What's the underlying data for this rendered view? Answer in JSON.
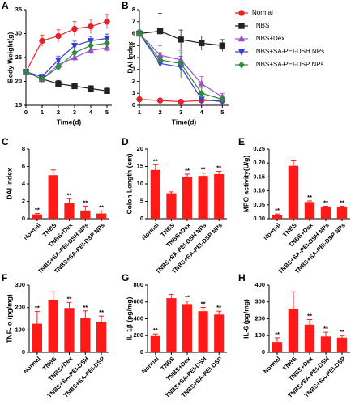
{
  "chart_data": [
    {
      "type": "line",
      "label": "A",
      "ylabel": "Body Weight(g)",
      "xlabel": "Time(d)",
      "x": [
        0,
        1,
        2,
        3,
        4,
        5
      ],
      "xlim": [
        0,
        5.3
      ],
      "xticks": [
        0,
        1,
        2,
        3,
        4,
        5
      ],
      "ylim": [
        15,
        35
      ],
      "yticks": [
        15,
        20,
        25,
        30,
        35
      ],
      "series": [
        {
          "name": "Normal",
          "color": "#e8212a",
          "marker": "circle",
          "values": [
            22,
            28.5,
            29.5,
            31,
            31.5,
            32.5
          ],
          "errors": [
            0.5,
            1.2,
            1.3,
            1.5,
            1.5,
            1.5
          ]
        },
        {
          "name": "TNBS",
          "color": "#222222",
          "marker": "square",
          "values": [
            22,
            20.5,
            19.5,
            19,
            18.5,
            18
          ],
          "errors": [
            0.5,
            0.5,
            0.7,
            0.6,
            0.6,
            0.6
          ]
        },
        {
          "name": "TNBS+Dex",
          "color": "#9b4fc9",
          "marker": "triangle",
          "values": [
            22,
            20.5,
            23.5,
            25,
            26.5,
            27
          ],
          "errors": [
            0.5,
            0.5,
            0.7,
            0.8,
            0.8,
            0.8
          ]
        },
        {
          "name": "TNBS+SA-PEI-DSH NPs",
          "color": "#3a3ad6",
          "marker": "triangle-down",
          "values": [
            22,
            21,
            24.5,
            27.5,
            28.5,
            29
          ],
          "errors": [
            0.5,
            0.5,
            0.8,
            0.9,
            0.9,
            0.9
          ]
        },
        {
          "name": "TNBS+SA-PEI-DSP NPs",
          "color": "#2e8b3e",
          "marker": "diamond",
          "values": [
            22,
            20.5,
            23,
            26,
            27.5,
            28
          ],
          "errors": [
            0.5,
            0.5,
            0.7,
            0.8,
            0.8,
            0.8
          ]
        }
      ]
    },
    {
      "type": "line",
      "label": "B",
      "ylabel": "DAI Index",
      "xlabel": "Time(d)",
      "x": [
        1,
        2,
        3,
        4,
        5
      ],
      "xlim": [
        1,
        5.3
      ],
      "xticks": [
        1,
        2,
        3,
        4,
        5
      ],
      "ylim": [
        0,
        8
      ],
      "yticks": [
        0,
        1,
        2,
        3,
        4,
        5,
        6,
        7,
        8
      ],
      "series": [
        {
          "color": "#e8212a",
          "marker": "circle",
          "values": [
            0.5,
            0.4,
            0.3,
            0.4,
            0.4
          ],
          "errors": [
            0.1,
            0.1,
            0.1,
            0.1,
            0.1
          ]
        },
        {
          "color": "#222222",
          "marker": "square",
          "values": [
            6,
            6.2,
            5.5,
            5.2,
            5
          ],
          "errors": [
            0.3,
            1.5,
            0.8,
            0.6,
            0.5
          ]
        },
        {
          "color": "#9b4fc9",
          "marker": "triangle",
          "values": [
            6,
            4.2,
            3.8,
            1.8,
            0.7
          ],
          "errors": [
            0.3,
            0.8,
            0.8,
            0.6,
            0.3
          ]
        },
        {
          "color": "#3a3ad6",
          "marker": "triangle-down",
          "values": [
            6,
            3.5,
            3.2,
            0.5,
            0.3
          ],
          "errors": [
            0.3,
            0.9,
            0.9,
            0.5,
            0.3
          ]
        },
        {
          "color": "#2e8b3e",
          "marker": "diamond",
          "values": [
            6,
            3.8,
            3.5,
            1.0,
            0.5
          ],
          "errors": [
            0.3,
            0.6,
            0.9,
            0.5,
            0.3
          ]
        }
      ]
    },
    {
      "type": "bar",
      "label": "C",
      "ylabel": "DAI Index",
      "color": "#ff1a1a",
      "categories": [
        "Normal",
        "TNBS",
        "TNBS+Dex",
        "TNBS+SA-PEI-DSH NPs",
        "TNBS+SA-PEI-DSP NPs"
      ],
      "values": [
        0.5,
        5,
        1.8,
        0.95,
        0.6
      ],
      "errors": [
        0.1,
        0.6,
        0.5,
        0.5,
        0.3
      ],
      "significance": [
        "**",
        null,
        "**",
        "**",
        "**"
      ],
      "ylim": [
        0,
        8
      ],
      "yticks": [
        0,
        2,
        4,
        6,
        8
      ]
    },
    {
      "type": "bar",
      "label": "D",
      "ylabel": "Colon Length (cm)",
      "color": "#ff1a1a",
      "categories": [
        "Normal",
        "TNBS",
        "TNBS+Dex",
        "TNBS+SA-PEI-DSH NPs",
        "TNBS+SA-PEI-DSP NPs"
      ],
      "values": [
        14,
        7.3,
        12,
        12.3,
        12.8
      ],
      "errors": [
        1.5,
        0.4,
        0.8,
        0.8,
        0.8
      ],
      "significance": [
        "**",
        null,
        "**",
        "**",
        "**"
      ],
      "ylim": [
        0,
        20
      ],
      "yticks": [
        0,
        5,
        10,
        15,
        20
      ]
    },
    {
      "type": "bar",
      "label": "E",
      "ylabel": "MPO activity(U/g)",
      "color": "#ff1a1a",
      "categories": [
        "Normal",
        "TNBS",
        "TNBS+Dex",
        "TNBS+SA-PEI-DSH NPs",
        "TNBS+SA-PEI-DSP NPs"
      ],
      "values": [
        0.012,
        0.19,
        0.06,
        0.042,
        0.042
      ],
      "errors": [
        0.005,
        0.018,
        0.004,
        0.003,
        0.003
      ],
      "significance": [
        "**",
        null,
        "**",
        "**",
        "**"
      ],
      "ylim": [
        0,
        0.25
      ],
      "yticks": [
        {
          "value": 0,
          "label": "0.00"
        },
        {
          "value": 0.05,
          "label": "0.05"
        },
        {
          "value": 0.1,
          "label": "0.10"
        },
        {
          "value": 0.15,
          "label": "0.15"
        },
        {
          "value": 0.2,
          "label": "0.20"
        },
        {
          "value": 0.25,
          "label": "0.25"
        }
      ]
    },
    {
      "type": "bar",
      "label": "F",
      "ylabel": "TNF- α (pg/mg)",
      "color": "#ff1a1a",
      "categories": [
        "Normal",
        "TNBS",
        "TNBS+Dex",
        "TNBS+SA-PEI-DSH",
        "TNBS+SA-PEI-DSP"
      ],
      "values": [
        128,
        235,
        198,
        155,
        137
      ],
      "errors": [
        55,
        35,
        25,
        30,
        25
      ],
      "significance": [
        "**",
        null,
        "**",
        "**",
        "**"
      ],
      "ylim": [
        0,
        300
      ],
      "yticks": [
        0,
        100,
        200,
        300
      ]
    },
    {
      "type": "bar",
      "label": "G",
      "ylabel": "IL-1β (pg/mg)",
      "color": "#ff1a1a",
      "categories": [
        "Normal",
        "TNBS",
        "TNBS+Dex",
        "TNBS+SA-PEI-DSH",
        "TNBS+SA-PEI-DSP"
      ],
      "values": [
        195,
        645,
        575,
        490,
        450
      ],
      "errors": [
        25,
        45,
        35,
        45,
        40
      ],
      "significance": [
        "**",
        null,
        "**",
        "**",
        "**"
      ],
      "ylim": [
        0,
        800
      ],
      "yticks": [
        0,
        200,
        400,
        600,
        800
      ]
    },
    {
      "type": "bar",
      "label": "H",
      "ylabel": "IL-6 (pg/mg)",
      "color": "#ff1a1a",
      "categories": [
        "Normal",
        "TNBS",
        "TNBS+Dex",
        "TNBS+SA-PEI-DSH",
        "TNBS+SA-PEI-DSP"
      ],
      "values": [
        62,
        260,
        165,
        95,
        88
      ],
      "errors": [
        25,
        100,
        30,
        25,
        12
      ],
      "significance": [
        "**",
        null,
        "**",
        "**",
        "**"
      ],
      "ylim": [
        0,
        400
      ],
      "yticks": [
        0,
        100,
        200,
        300,
        400
      ]
    }
  ]
}
